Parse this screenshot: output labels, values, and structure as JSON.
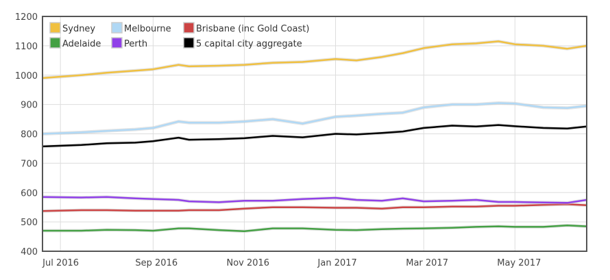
{
  "chart_data": {
    "type": "line",
    "title": "",
    "xlabel": "",
    "ylabel": "",
    "ylim": [
      400,
      1200
    ],
    "yticks": [
      "400",
      "500",
      "600",
      "700",
      "800",
      "900",
      "1000",
      "1100",
      "1200"
    ],
    "xlim": [
      "2016-06-19",
      "2017-06-18"
    ],
    "xticks": [
      {
        "date": "2016-07-01",
        "label": "Jul 2016"
      },
      {
        "date": "2016-09-01",
        "label": "Sep 2016"
      },
      {
        "date": "2016-11-01",
        "label": "Nov 2016"
      },
      {
        "date": "2017-01-01",
        "label": "Jan 2017"
      },
      {
        "date": "2017-03-01",
        "label": "Mar 2017"
      },
      {
        "date": "2017-05-01",
        "label": "May 2017"
      }
    ],
    "grid": true,
    "legend_position": "top-left",
    "x": [
      "2016-06-19",
      "2016-07-15",
      "2016-08-01",
      "2016-08-20",
      "2016-09-01",
      "2016-09-18",
      "2016-09-25",
      "2016-10-15",
      "2016-11-01",
      "2016-11-20",
      "2016-12-10",
      "2017-01-01",
      "2017-01-15",
      "2017-02-01",
      "2017-02-15",
      "2017-03-01",
      "2017-03-20",
      "2017-04-05",
      "2017-04-20",
      "2017-05-01",
      "2017-05-20",
      "2017-06-05",
      "2017-06-18"
    ],
    "series": [
      {
        "name": "Sydney",
        "color": "#f0c040",
        "values": [
          990,
          1000,
          1008,
          1015,
          1020,
          1035,
          1030,
          1032,
          1035,
          1042,
          1045,
          1055,
          1050,
          1062,
          1075,
          1092,
          1105,
          1108,
          1115,
          1105,
          1100,
          1090,
          1100
        ]
      },
      {
        "name": "Melbourne",
        "color": "#b0d8f5",
        "values": [
          800,
          805,
          810,
          815,
          820,
          842,
          838,
          838,
          842,
          850,
          835,
          858,
          862,
          868,
          872,
          890,
          900,
          900,
          905,
          903,
          890,
          888,
          895
        ]
      },
      {
        "name": "Brisbane (inc Gold Coast)",
        "color": "#cc4444",
        "values": [
          537,
          540,
          540,
          538,
          538,
          538,
          540,
          540,
          545,
          550,
          550,
          548,
          548,
          545,
          550,
          550,
          552,
          552,
          555,
          555,
          558,
          560,
          557
        ]
      },
      {
        "name": "Adelaide",
        "color": "#44a044",
        "values": [
          470,
          470,
          473,
          472,
          470,
          478,
          478,
          472,
          468,
          478,
          478,
          473,
          472,
          475,
          477,
          478,
          480,
          483,
          485,
          483,
          483,
          488,
          485
        ]
      },
      {
        "name": "Perth",
        "color": "#9040e8",
        "values": [
          585,
          583,
          585,
          580,
          578,
          575,
          570,
          567,
          572,
          572,
          578,
          582,
          575,
          572,
          580,
          570,
          572,
          575,
          568,
          568,
          566,
          565,
          575
        ]
      },
      {
        "name": "5 capital city aggregate",
        "color": "#000000",
        "values": [
          757,
          762,
          768,
          770,
          775,
          787,
          780,
          782,
          785,
          793,
          788,
          800,
          798,
          803,
          808,
          820,
          828,
          825,
          830,
          826,
          820,
          818,
          825
        ]
      }
    ]
  }
}
